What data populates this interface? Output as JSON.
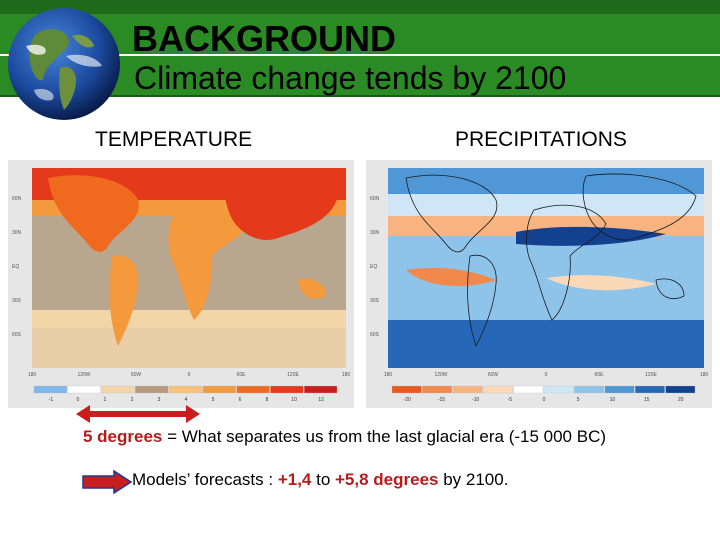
{
  "header": {
    "title": "BACKGROUND",
    "subtitle": "Climate change tends by 2100"
  },
  "panels": {
    "temperature": {
      "label": "TEMPERATURE",
      "lat_labels": [
        "60N",
        "30N",
        "EQ",
        "30S",
        "60S"
      ],
      "lon_labels": [
        "180",
        "120W",
        "60W",
        "0",
        "60E",
        "120E",
        "180"
      ],
      "legend_colors": [
        "#7fb8e8",
        "#ffffff",
        "#f2d6a8",
        "#b79a7e",
        "#f8c27a",
        "#f59a3c",
        "#ef6a1f",
        "#e4391b",
        "#c81e1e"
      ],
      "legend_labels": [
        "-1",
        "0",
        "1",
        "2",
        "3",
        "4",
        "5",
        "6",
        "8",
        "10",
        "12"
      ]
    },
    "precipitation": {
      "label": "PRECIPITATIONS",
      "lat_labels": [
        "60N",
        "30N",
        "EQ",
        "30S",
        "60S"
      ],
      "lon_labels": [
        "180",
        "120W",
        "60W",
        "0",
        "60E",
        "120E",
        "180"
      ],
      "legend_colors": [
        "#e95a1c",
        "#f2894a",
        "#f7b481",
        "#fbd9b8",
        "#ffffff",
        "#cfe6f6",
        "#8fc4ea",
        "#4f97d6",
        "#2767b8",
        "#13408f"
      ],
      "legend_labels": [
        "-20",
        "-15",
        "-10",
        "-5",
        "0",
        "5",
        "10",
        "15",
        "20"
      ]
    }
  },
  "note": {
    "highlight": "5 degrees",
    "text": " = What separates us from the last glacial era (-15 000 BC)"
  },
  "forecast": {
    "prefix": "Models’ forecasts : ",
    "low": "+1,4",
    "middle": " to ",
    "high": "+5,8 degrees",
    "suffix": " by 2100."
  }
}
